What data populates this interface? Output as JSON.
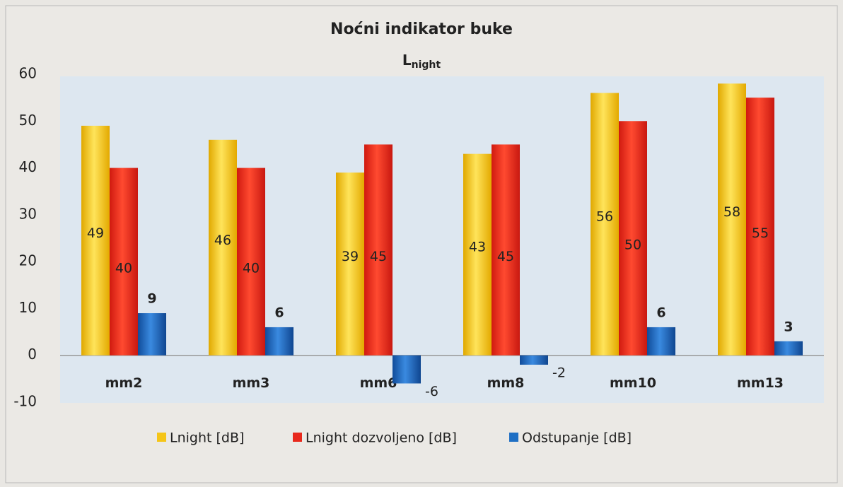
{
  "chart_data": {
    "type": "bar",
    "title": "Noćni indikator buke",
    "subtitle": [
      "L",
      "night"
    ],
    "categories": [
      "mm2",
      "mm3",
      "mm6",
      "mm8",
      "mm10",
      "mm13"
    ],
    "series": [
      {
        "name": "Lnight [dB]",
        "color": "#f5c518",
        "values": [
          49,
          46,
          39,
          43,
          56,
          58
        ]
      },
      {
        "name": "Lnight dozvoljeno [dB]",
        "color": "#e8281c",
        "values": [
          40,
          40,
          45,
          45,
          50,
          55
        ]
      },
      {
        "name": "Odstupanje [dB]",
        "color": "#1f6fc4",
        "values": [
          9,
          6,
          -6,
          -2,
          6,
          3
        ]
      }
    ],
    "ylim": [
      -10,
      60
    ],
    "yticks": [
      -10,
      0,
      10,
      20,
      30,
      40,
      50,
      60
    ],
    "grid": false,
    "legend": "bottom"
  }
}
